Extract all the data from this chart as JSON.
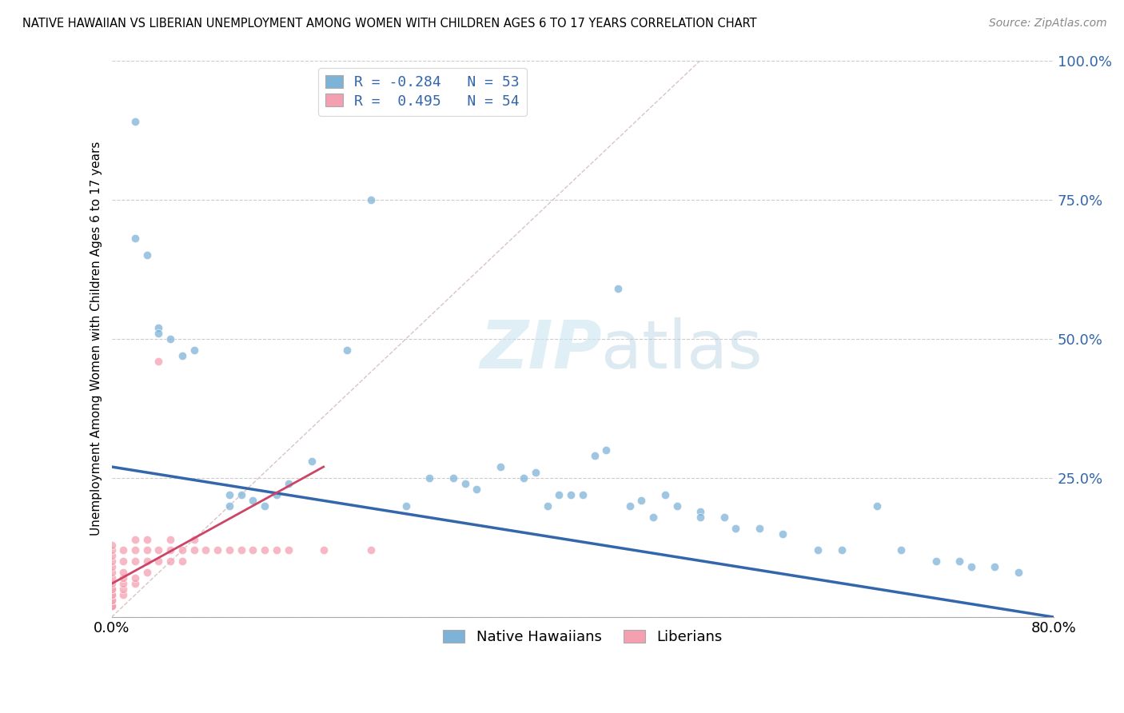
{
  "title": "NATIVE HAWAIIAN VS LIBERIAN UNEMPLOYMENT AMONG WOMEN WITH CHILDREN AGES 6 TO 17 YEARS CORRELATION CHART",
  "source": "Source: ZipAtlas.com",
  "ylabel": "Unemployment Among Women with Children Ages 6 to 17 years",
  "xmin": 0.0,
  "xmax": 0.8,
  "ymin": 0.0,
  "ymax": 1.0,
  "ytick_vals": [
    0.0,
    0.25,
    0.5,
    0.75,
    1.0
  ],
  "ytick_labels": [
    "",
    "25.0%",
    "50.0%",
    "75.0%",
    "100.0%"
  ],
  "xtick_vals": [
    0.0,
    0.8
  ],
  "xtick_labels": [
    "0.0%",
    "80.0%"
  ],
  "color_hawaiian": "#7EB3D8",
  "color_liberian": "#F4A0B0",
  "color_line_hawaiian": "#3366AA",
  "color_line_liberian": "#CC4466",
  "watermark_text": "ZIPatlas",
  "nh_line_x0": 0.0,
  "nh_line_y0": 0.27,
  "nh_line_x1": 0.8,
  "nh_line_y1": 0.0,
  "lib_line_x0": 0.0,
  "lib_line_y0": 0.06,
  "lib_line_x1": 0.18,
  "lib_line_y1": 0.27,
  "native_hawaiian_x": [
    0.02,
    0.02,
    0.03,
    0.04,
    0.04,
    0.05,
    0.06,
    0.07,
    0.1,
    0.1,
    0.11,
    0.12,
    0.13,
    0.14,
    0.15,
    0.17,
    0.2,
    0.22,
    0.25,
    0.27,
    0.29,
    0.3,
    0.31,
    0.33,
    0.35,
    0.36,
    0.37,
    0.38,
    0.39,
    0.4,
    0.41,
    0.42,
    0.43,
    0.44,
    0.45,
    0.46,
    0.47,
    0.48,
    0.5,
    0.5,
    0.52,
    0.53,
    0.55,
    0.57,
    0.6,
    0.62,
    0.65,
    0.67,
    0.7,
    0.72,
    0.73,
    0.75,
    0.77
  ],
  "native_hawaiian_y": [
    0.89,
    0.68,
    0.65,
    0.52,
    0.51,
    0.5,
    0.47,
    0.48,
    0.2,
    0.22,
    0.22,
    0.21,
    0.2,
    0.22,
    0.24,
    0.28,
    0.48,
    0.75,
    0.2,
    0.25,
    0.25,
    0.24,
    0.23,
    0.27,
    0.25,
    0.26,
    0.2,
    0.22,
    0.22,
    0.22,
    0.29,
    0.3,
    0.59,
    0.2,
    0.21,
    0.18,
    0.22,
    0.2,
    0.19,
    0.18,
    0.18,
    0.16,
    0.16,
    0.15,
    0.12,
    0.12,
    0.2,
    0.12,
    0.1,
    0.1,
    0.09,
    0.09,
    0.08
  ],
  "liberian_x": [
    0.0,
    0.0,
    0.0,
    0.0,
    0.0,
    0.0,
    0.0,
    0.0,
    0.0,
    0.0,
    0.0,
    0.0,
    0.0,
    0.0,
    0.0,
    0.0,
    0.0,
    0.0,
    0.01,
    0.01,
    0.01,
    0.01,
    0.01,
    0.01,
    0.01,
    0.02,
    0.02,
    0.02,
    0.02,
    0.02,
    0.03,
    0.03,
    0.03,
    0.03,
    0.04,
    0.04,
    0.04,
    0.05,
    0.05,
    0.05,
    0.06,
    0.06,
    0.07,
    0.07,
    0.08,
    0.09,
    0.1,
    0.11,
    0.12,
    0.13,
    0.14,
    0.15,
    0.18,
    0.22
  ],
  "liberian_y": [
    0.02,
    0.02,
    0.02,
    0.02,
    0.03,
    0.03,
    0.04,
    0.04,
    0.05,
    0.05,
    0.06,
    0.07,
    0.08,
    0.09,
    0.1,
    0.11,
    0.12,
    0.13,
    0.04,
    0.05,
    0.06,
    0.07,
    0.08,
    0.1,
    0.12,
    0.06,
    0.07,
    0.1,
    0.12,
    0.14,
    0.08,
    0.1,
    0.12,
    0.14,
    0.1,
    0.12,
    0.46,
    0.1,
    0.12,
    0.14,
    0.1,
    0.12,
    0.12,
    0.14,
    0.12,
    0.12,
    0.12,
    0.12,
    0.12,
    0.12,
    0.12,
    0.12,
    0.12,
    0.12
  ]
}
